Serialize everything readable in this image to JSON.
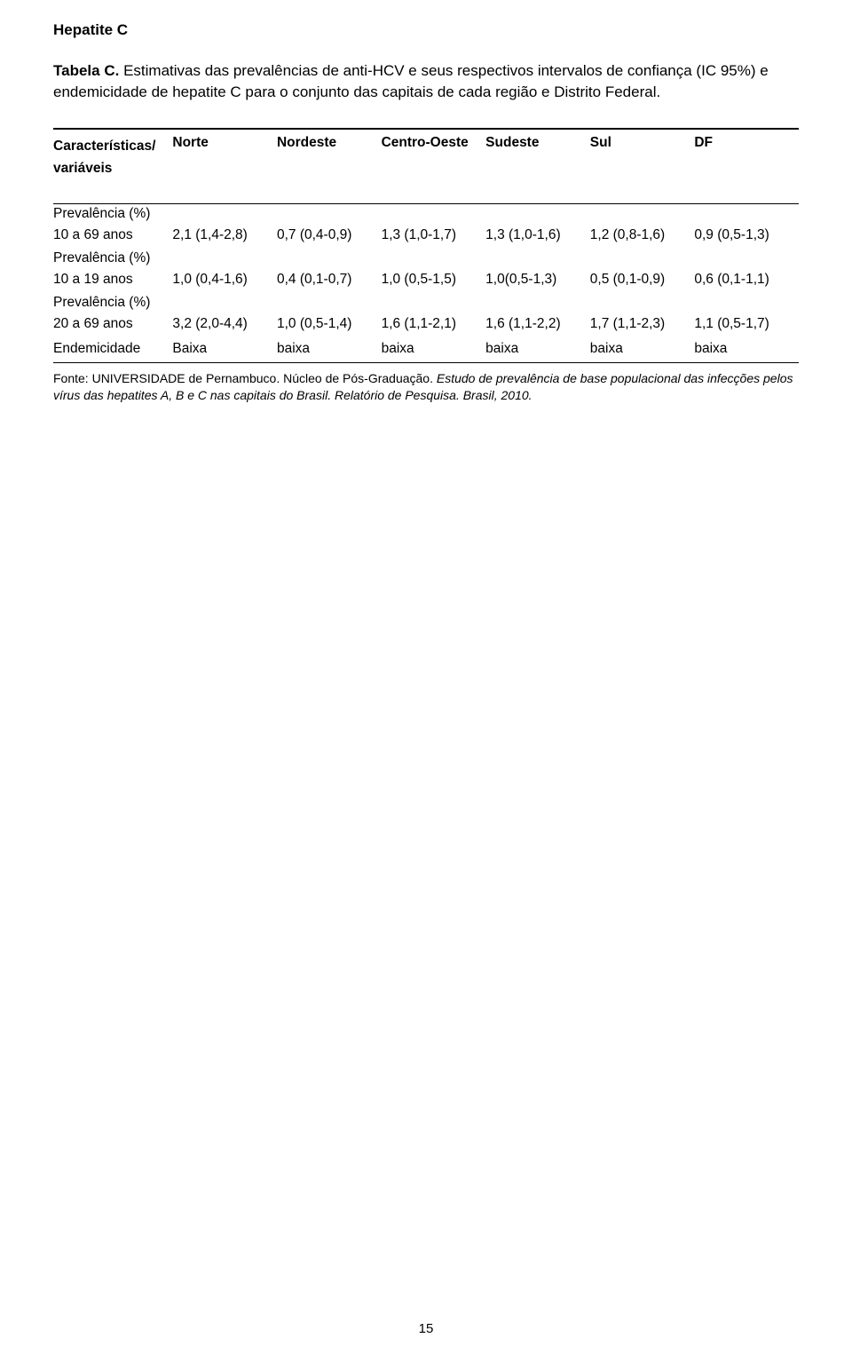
{
  "page_number": "15",
  "heading": "Hepatite C",
  "caption_label": "Tabela C.",
  "caption_text": "Estimativas das prevalências de anti-HCV e seus respectivos intervalos de confiança (IC 95%) e endemicidade de hepatite C para o conjunto das capitais de cada região e Distrito Federal.",
  "table": {
    "header_var_l1": "Características/",
    "header_var_l2": "variáveis",
    "cols": [
      "Norte",
      "Nordeste",
      "Centro-Oeste",
      "Sudeste",
      "Sul",
      "DF"
    ],
    "group1_label": "Prevalência (%)",
    "group1_rowlabel": "10 a 69 anos",
    "group1_vals": [
      "2,1 (1,4-2,8)",
      "0,7 (0,4-0,9)",
      "1,3 (1,0-1,7)",
      "1,3 (1,0-1,6)",
      "1,2 (0,8-1,6)",
      "0,9 (0,5-1,3)"
    ],
    "group2_label": "Prevalência (%)",
    "group2_rowlabel": "10 a 19 anos",
    "group2_vals": [
      "1,0 (0,4-1,6)",
      "0,4 (0,1-0,7)",
      "1,0 (0,5-1,5)",
      "1,0(0,5-1,3)",
      "0,5 (0,1-0,9)",
      "0,6 (0,1-1,1)"
    ],
    "group3_label": "Prevalência (%)",
    "group3_rowlabel": "20 a 69 anos",
    "group3_vals": [
      "3,2 (2,0-4,4)",
      "1,0 (0,5-1,4)",
      "1,6 (1,1-2,1)",
      "1,6 (1,1-2,2)",
      "1,7 (1,1-2,3)",
      "1,1 (0,5-1,7)"
    ],
    "endem_rowlabel": "Endemicidade",
    "endem_vals": [
      "Baixa",
      "baixa",
      "baixa",
      "baixa",
      "baixa",
      "baixa"
    ]
  },
  "footnote_plain": "Fonte: UNIVERSIDADE de Pernambuco. Núcleo de Pós-Graduação. ",
  "footnote_italic": "Estudo de prevalência de base populacional das infecções pelos vírus das hepatites A, B e C nas capitais do Brasil. Relatório de Pesquisa. Brasil, 2010."
}
